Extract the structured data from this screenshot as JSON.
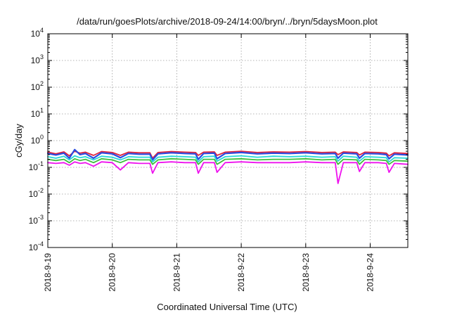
{
  "chart_data": {
    "type": "line",
    "title": "/data/run/goesPlots/archive/2018-09-24/14:00/bryn/../bryn/5daysMoon.plot",
    "xlabel": "Coordinated Universal Time (UTC)",
    "ylabel": "cGy/day",
    "y_scale": "log",
    "ylim": [
      0.0001,
      10000
    ],
    "y_ticks": [
      {
        "base": "10",
        "exp": "-4",
        "value": 0.0001
      },
      {
        "base": "10",
        "exp": "-3",
        "value": 0.001
      },
      {
        "base": "10",
        "exp": "-2",
        "value": 0.01
      },
      {
        "base": "10",
        "exp": "-1",
        "value": 0.1
      },
      {
        "base": "10",
        "exp": "0",
        "value": 1
      },
      {
        "base": "10",
        "exp": "1",
        "value": 10
      },
      {
        "base": "10",
        "exp": "2",
        "value": 100
      },
      {
        "base": "10",
        "exp": "3",
        "value": 1000
      },
      {
        "base": "10",
        "exp": "4",
        "value": 10000
      }
    ],
    "xlim": [
      "2018-09-19 00:00",
      "2018-09-24 14:00"
    ],
    "x_ticks": [
      "2018-9-19",
      "2018-9-20",
      "2018-9-21",
      "2018-9-22",
      "2018-9-23",
      "2018-9-24"
    ],
    "grid": true,
    "series": [
      {
        "color": "#e0223c",
        "points": [
          [
            "2018-09-19 00:00",
            0.37
          ],
          [
            "2018-09-19 03:00",
            0.32
          ],
          [
            "2018-09-19 06:00",
            0.38
          ],
          [
            "2018-09-19 08:00",
            0.27
          ],
          [
            "2018-09-19 10:00",
            0.4
          ],
          [
            "2018-09-19 12:00",
            0.34
          ],
          [
            "2018-09-19 14:00",
            0.37
          ],
          [
            "2018-09-19 17:00",
            0.28
          ],
          [
            "2018-09-19 20:00",
            0.39
          ],
          [
            "2018-09-20 00:00",
            0.36
          ],
          [
            "2018-09-20 03:00",
            0.28
          ],
          [
            "2018-09-20 06:00",
            0.37
          ],
          [
            "2018-09-20 10:00",
            0.35
          ],
          [
            "2018-09-20 14:00",
            0.35
          ],
          [
            "2018-09-20 15:00",
            0.22
          ],
          [
            "2018-09-20 17:00",
            0.36
          ],
          [
            "2018-09-20 22:00",
            0.39
          ],
          [
            "2018-09-21 03:00",
            0.37
          ],
          [
            "2018-09-21 07:00",
            0.36
          ],
          [
            "2018-09-21 08:00",
            0.28
          ],
          [
            "2018-09-21 10:00",
            0.37
          ],
          [
            "2018-09-21 14:00",
            0.38
          ],
          [
            "2018-09-21 15:00",
            0.28
          ],
          [
            "2018-09-21 18:00",
            0.37
          ],
          [
            "2018-09-22 00:00",
            0.4
          ],
          [
            "2018-09-22 06:00",
            0.36
          ],
          [
            "2018-09-22 12:00",
            0.38
          ],
          [
            "2018-09-22 18:00",
            0.37
          ],
          [
            "2018-09-23 00:00",
            0.39
          ],
          [
            "2018-09-23 06:00",
            0.36
          ],
          [
            "2018-09-23 11:00",
            0.37
          ],
          [
            "2018-09-23 12:00",
            0.3
          ],
          [
            "2018-09-23 14:00",
            0.38
          ],
          [
            "2018-09-23 19:00",
            0.36
          ],
          [
            "2018-09-23 20:00",
            0.29
          ],
          [
            "2018-09-23 22:00",
            0.37
          ],
          [
            "2018-09-24 03:00",
            0.36
          ],
          [
            "2018-09-24 06:00",
            0.34
          ],
          [
            "2018-09-24 07:00",
            0.27
          ],
          [
            "2018-09-24 09:00",
            0.35
          ],
          [
            "2018-09-24 14:00",
            0.33
          ]
        ]
      },
      {
        "color": "#2a4be0",
        "points": [
          [
            "2018-09-19 00:00",
            0.33
          ],
          [
            "2018-09-19 03:00",
            0.29
          ],
          [
            "2018-09-19 06:00",
            0.34
          ],
          [
            "2018-09-19 08:00",
            0.22
          ],
          [
            "2018-09-19 10:00",
            0.46
          ],
          [
            "2018-09-19 12:00",
            0.3
          ],
          [
            "2018-09-19 14:00",
            0.33
          ],
          [
            "2018-09-19 17:00",
            0.22
          ],
          [
            "2018-09-19 20:00",
            0.35
          ],
          [
            "2018-09-20 00:00",
            0.32
          ],
          [
            "2018-09-20 03:00",
            0.23
          ],
          [
            "2018-09-20 06:00",
            0.33
          ],
          [
            "2018-09-20 10:00",
            0.31
          ],
          [
            "2018-09-20 14:00",
            0.31
          ],
          [
            "2018-09-20 15:00",
            0.19
          ],
          [
            "2018-09-20 17:00",
            0.32
          ],
          [
            "2018-09-20 22:00",
            0.35
          ],
          [
            "2018-09-21 03:00",
            0.33
          ],
          [
            "2018-09-21 07:00",
            0.32
          ],
          [
            "2018-09-21 08:00",
            0.2
          ],
          [
            "2018-09-21 10:00",
            0.33
          ],
          [
            "2018-09-21 14:00",
            0.34
          ],
          [
            "2018-09-21 15:00",
            0.21
          ],
          [
            "2018-09-21 18:00",
            0.33
          ],
          [
            "2018-09-22 00:00",
            0.36
          ],
          [
            "2018-09-22 06:00",
            0.32
          ],
          [
            "2018-09-22 12:00",
            0.34
          ],
          [
            "2018-09-22 18:00",
            0.33
          ],
          [
            "2018-09-23 00:00",
            0.35
          ],
          [
            "2018-09-23 06:00",
            0.32
          ],
          [
            "2018-09-23 11:00",
            0.33
          ],
          [
            "2018-09-23 12:00",
            0.22
          ],
          [
            "2018-09-23 14:00",
            0.34
          ],
          [
            "2018-09-23 19:00",
            0.32
          ],
          [
            "2018-09-23 20:00",
            0.22
          ],
          [
            "2018-09-23 22:00",
            0.33
          ],
          [
            "2018-09-24 03:00",
            0.32
          ],
          [
            "2018-09-24 06:00",
            0.3
          ],
          [
            "2018-09-24 07:00",
            0.21
          ],
          [
            "2018-09-24 09:00",
            0.31
          ],
          [
            "2018-09-24 14:00",
            0.29
          ]
        ]
      },
      {
        "color": "#27d8d8",
        "points": [
          [
            "2018-09-19 00:00",
            0.25
          ],
          [
            "2018-09-19 03:00",
            0.22
          ],
          [
            "2018-09-19 06:00",
            0.26
          ],
          [
            "2018-09-19 08:00",
            0.19
          ],
          [
            "2018-09-19 10:00",
            0.27
          ],
          [
            "2018-09-19 12:00",
            0.23
          ],
          [
            "2018-09-19 14:00",
            0.25
          ],
          [
            "2018-09-19 17:00",
            0.19
          ],
          [
            "2018-09-19 20:00",
            0.26
          ],
          [
            "2018-09-20 00:00",
            0.24
          ],
          [
            "2018-09-20 03:00",
            0.19
          ],
          [
            "2018-09-20 06:00",
            0.25
          ],
          [
            "2018-09-20 10:00",
            0.24
          ],
          [
            "2018-09-20 14:00",
            0.24
          ],
          [
            "2018-09-20 15:00",
            0.16
          ],
          [
            "2018-09-20 17:00",
            0.24
          ],
          [
            "2018-09-20 22:00",
            0.26
          ],
          [
            "2018-09-21 03:00",
            0.25
          ],
          [
            "2018-09-21 07:00",
            0.24
          ],
          [
            "2018-09-21 08:00",
            0.16
          ],
          [
            "2018-09-21 10:00",
            0.25
          ],
          [
            "2018-09-21 14:00",
            0.26
          ],
          [
            "2018-09-21 15:00",
            0.17
          ],
          [
            "2018-09-21 18:00",
            0.25
          ],
          [
            "2018-09-22 00:00",
            0.27
          ],
          [
            "2018-09-22 06:00",
            0.24
          ],
          [
            "2018-09-22 12:00",
            0.26
          ],
          [
            "2018-09-22 18:00",
            0.25
          ],
          [
            "2018-09-23 00:00",
            0.26
          ],
          [
            "2018-09-23 06:00",
            0.24
          ],
          [
            "2018-09-23 11:00",
            0.25
          ],
          [
            "2018-09-23 12:00",
            0.17
          ],
          [
            "2018-09-23 14:00",
            0.26
          ],
          [
            "2018-09-23 19:00",
            0.24
          ],
          [
            "2018-09-23 20:00",
            0.17
          ],
          [
            "2018-09-23 22:00",
            0.25
          ],
          [
            "2018-09-24 03:00",
            0.24
          ],
          [
            "2018-09-24 06:00",
            0.23
          ],
          [
            "2018-09-24 07:00",
            0.16
          ],
          [
            "2018-09-24 09:00",
            0.23
          ],
          [
            "2018-09-24 14:00",
            0.22
          ]
        ]
      },
      {
        "color": "#3cbf3c",
        "points": [
          [
            "2018-09-19 00:00",
            0.2
          ],
          [
            "2018-09-19 03:00",
            0.18
          ],
          [
            "2018-09-19 06:00",
            0.2
          ],
          [
            "2018-09-19 08:00",
            0.15
          ],
          [
            "2018-09-19 10:00",
            0.21
          ],
          [
            "2018-09-19 12:00",
            0.18
          ],
          [
            "2018-09-19 14:00",
            0.2
          ],
          [
            "2018-09-19 17:00",
            0.15
          ],
          [
            "2018-09-19 20:00",
            0.21
          ],
          [
            "2018-09-20 00:00",
            0.19
          ],
          [
            "2018-09-20 03:00",
            0.15
          ],
          [
            "2018-09-20 06:00",
            0.2
          ],
          [
            "2018-09-20 10:00",
            0.19
          ],
          [
            "2018-09-20 14:00",
            0.19
          ],
          [
            "2018-09-20 15:00",
            0.13
          ],
          [
            "2018-09-20 17:00",
            0.19
          ],
          [
            "2018-09-20 22:00",
            0.21
          ],
          [
            "2018-09-21 03:00",
            0.2
          ],
          [
            "2018-09-21 07:00",
            0.19
          ],
          [
            "2018-09-21 08:00",
            0.13
          ],
          [
            "2018-09-21 10:00",
            0.2
          ],
          [
            "2018-09-21 14:00",
            0.2
          ],
          [
            "2018-09-21 15:00",
            0.13
          ],
          [
            "2018-09-21 18:00",
            0.2
          ],
          [
            "2018-09-22 00:00",
            0.21
          ],
          [
            "2018-09-22 06:00",
            0.19
          ],
          [
            "2018-09-22 12:00",
            0.2
          ],
          [
            "2018-09-22 18:00",
            0.2
          ],
          [
            "2018-09-23 00:00",
            0.21
          ],
          [
            "2018-09-23 06:00",
            0.19
          ],
          [
            "2018-09-23 11:00",
            0.2
          ],
          [
            "2018-09-23 12:00",
            0.13
          ],
          [
            "2018-09-23 14:00",
            0.2
          ],
          [
            "2018-09-23 19:00",
            0.19
          ],
          [
            "2018-09-23 20:00",
            0.13
          ],
          [
            "2018-09-23 22:00",
            0.2
          ],
          [
            "2018-09-24 03:00",
            0.19
          ],
          [
            "2018-09-24 06:00",
            0.18
          ],
          [
            "2018-09-24 07:00",
            0.13
          ],
          [
            "2018-09-24 09:00",
            0.18
          ],
          [
            "2018-09-24 14:00",
            0.17
          ]
        ]
      },
      {
        "color": "#ee11ee",
        "points": [
          [
            "2018-09-19 00:00",
            0.15
          ],
          [
            "2018-09-19 03:00",
            0.14
          ],
          [
            "2018-09-19 06:00",
            0.15
          ],
          [
            "2018-09-19 08:00",
            0.12
          ],
          [
            "2018-09-19 10:00",
            0.16
          ],
          [
            "2018-09-19 12:00",
            0.14
          ],
          [
            "2018-09-19 14:00",
            0.15
          ],
          [
            "2018-09-19 17:00",
            0.11
          ],
          [
            "2018-09-19 20:00",
            0.16
          ],
          [
            "2018-09-20 00:00",
            0.15
          ],
          [
            "2018-09-20 03:00",
            0.08
          ],
          [
            "2018-09-20 06:00",
            0.15
          ],
          [
            "2018-09-20 10:00",
            0.14
          ],
          [
            "2018-09-20 14:00",
            0.14
          ],
          [
            "2018-09-20 15:00",
            0.06
          ],
          [
            "2018-09-20 17:00",
            0.15
          ],
          [
            "2018-09-20 22:00",
            0.16
          ],
          [
            "2018-09-21 03:00",
            0.15
          ],
          [
            "2018-09-21 07:00",
            0.15
          ],
          [
            "2018-09-21 08:00",
            0.06
          ],
          [
            "2018-09-21 10:00",
            0.15
          ],
          [
            "2018-09-21 14:00",
            0.15
          ],
          [
            "2018-09-21 15:00",
            0.065
          ],
          [
            "2018-09-21 18:00",
            0.15
          ],
          [
            "2018-09-22 00:00",
            0.16
          ],
          [
            "2018-09-22 06:00",
            0.15
          ],
          [
            "2018-09-22 12:00",
            0.15
          ],
          [
            "2018-09-22 18:00",
            0.15
          ],
          [
            "2018-09-23 00:00",
            0.16
          ],
          [
            "2018-09-23 06:00",
            0.15
          ],
          [
            "2018-09-23 11:00",
            0.15
          ],
          [
            "2018-09-23 12:00",
            0.025
          ],
          [
            "2018-09-23 14:00",
            0.15
          ],
          [
            "2018-09-23 19:00",
            0.15
          ],
          [
            "2018-09-23 20:00",
            0.07
          ],
          [
            "2018-09-23 22:00",
            0.15
          ],
          [
            "2018-09-24 03:00",
            0.15
          ],
          [
            "2018-09-24 06:00",
            0.14
          ],
          [
            "2018-09-24 07:00",
            0.065
          ],
          [
            "2018-09-24 09:00",
            0.14
          ],
          [
            "2018-09-24 14:00",
            0.13
          ]
        ]
      }
    ]
  }
}
